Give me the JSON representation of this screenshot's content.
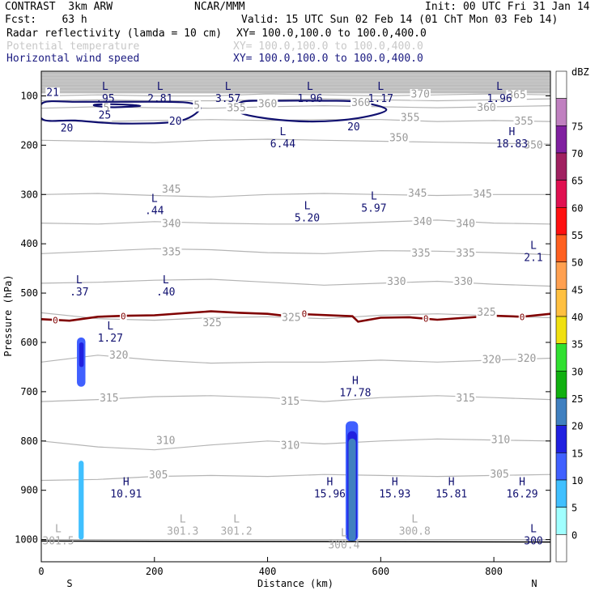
{
  "header": {
    "model": "CONTRAST  3km ARW",
    "center": "NCAR/MMM",
    "init": "Init: 00 UTC Fri 31 Jan 14",
    "fcst": "Fcst:    63 h",
    "valid": "Valid: 15 UTC Sun 02 Feb 14 (01 ChT Mon 03 Feb 14)",
    "fields": [
      {
        "name": "Radar reflectivity (lamda = 10 cm)",
        "xy": "XY= 100.0,100.0 to 100.0,400.0"
      },
      {
        "name": "Potential temperature",
        "xy": "XY= 100.0,100.0 to 100.0,400.0"
      },
      {
        "name": "Horizontal wind speed",
        "xy": "XY= 100.0,100.0 to 100.0,400.0"
      }
    ]
  },
  "chart_data": {
    "type": "cross-section",
    "xlabel": "Distance (km)",
    "ylabel": "Pressure (hPa)",
    "xlim": [
      0,
      900
    ],
    "ylim": [
      1045,
      50
    ],
    "x_ticks": [
      0,
      200,
      400,
      600,
      800
    ],
    "y_ticks": [
      100,
      200,
      300,
      400,
      500,
      600,
      700,
      800,
      900,
      1000
    ],
    "end_labels": {
      "left": "S",
      "right": "N"
    },
    "colorbar": {
      "unit": "dBZ",
      "levels": [
        "0",
        "5",
        "10",
        "15",
        "20",
        "25",
        "30",
        "35",
        "40",
        "45",
        "50",
        "55",
        "60",
        "65",
        "70",
        "75"
      ],
      "colors": [
        "#ffffff",
        "#a0ffff",
        "#40c0ff",
        "#4060ff",
        "#2020e0",
        "#4080c0",
        "#10b010",
        "#30e030",
        "#f0e010",
        "#ffc040",
        "#ffa050",
        "#ff6020",
        "#ff1010",
        "#e01050",
        "#a02060",
        "#8020a0",
        "#c080c0",
        "#ffffff"
      ]
    },
    "theta_contours": [
      {
        "value": 300,
        "p": [
          1000,
          1000,
          1000,
          1000,
          1000,
          1000,
          1000,
          1000,
          1000,
          1000
        ]
      },
      {
        "value": 305,
        "p": [
          880,
          878,
          872,
          870,
          872,
          868,
          870,
          872,
          870,
          868
        ]
      },
      {
        "value": 310,
        "p": [
          800,
          812,
          818,
          808,
          800,
          806,
          800,
          796,
          798,
          800
        ]
      },
      {
        "value": 315,
        "p": [
          720,
          716,
          710,
          708,
          712,
          720,
          712,
          708,
          712,
          716
        ]
      },
      {
        "value": 320,
        "p": [
          640,
          626,
          636,
          642,
          640,
          640,
          636,
          640,
          636,
          632
        ]
      },
      {
        "value": 325,
        "p": [
          540,
          552,
          555,
          550,
          548,
          552,
          545,
          542,
          546,
          550
        ]
      },
      {
        "value": 330,
        "p": [
          480,
          478,
          474,
          472,
          478,
          484,
          480,
          476,
          482,
          486
        ]
      },
      {
        "value": 335,
        "p": [
          420,
          415,
          410,
          412,
          418,
          420,
          414,
          415,
          418,
          422
        ]
      },
      {
        "value": 340,
        "p": [
          358,
          360,
          355,
          358,
          360,
          360,
          356,
          352,
          358,
          360
        ]
      },
      {
        "value": 345,
        "p": [
          300,
          298,
          302,
          305,
          300,
          298,
          300,
          302,
          300,
          300
        ]
      },
      {
        "value": 350,
        "p": [
          190,
          192,
          195,
          190,
          188,
          190,
          192,
          194,
          196,
          198
        ]
      },
      {
        "value": 355,
        "p": [
          150,
          152,
          150,
          148,
          150,
          148,
          148,
          152,
          150,
          152
        ]
      },
      {
        "value": 360,
        "p": [
          125,
          122,
          124,
          125,
          122,
          120,
          122,
          124,
          122,
          120
        ]
      },
      {
        "value": 365,
        "p": [
          110,
          108,
          110,
          110,
          108,
          106,
          108,
          110,
          108,
          106
        ]
      },
      {
        "value": 370,
        "p": [
          100,
          98,
          100,
          100,
          96,
          98,
          100,
          98,
          96,
          98
        ]
      }
    ],
    "theta_labels": [
      {
        "x": 115,
        "p": 123,
        "text": "5"
      },
      {
        "x": 275,
        "p": 118,
        "text": "5"
      },
      {
        "x": 345,
        "p": 123,
        "text": "355"
      },
      {
        "x": 400,
        "p": 115,
        "text": "360"
      },
      {
        "x": 565,
        "p": 112,
        "text": "360"
      },
      {
        "x": 670,
        "p": 95,
        "text": "370"
      },
      {
        "x": 787,
        "p": 122,
        "text": "360"
      },
      {
        "x": 840,
        "p": 97,
        "text": "365"
      },
      {
        "x": 853,
        "p": 150,
        "text": "355"
      },
      {
        "x": 652,
        "p": 143,
        "text": "355"
      },
      {
        "x": 632,
        "p": 184,
        "text": "350"
      },
      {
        "x": 870,
        "p": 199,
        "text": "350"
      },
      {
        "x": 230,
        "p": 288,
        "text": "345"
      },
      {
        "x": 665,
        "p": 296,
        "text": "345"
      },
      {
        "x": 780,
        "p": 298,
        "text": "345"
      },
      {
        "x": 230,
        "p": 358,
        "text": "340"
      },
      {
        "x": 674,
        "p": 354,
        "text": "340"
      },
      {
        "x": 750,
        "p": 358,
        "text": "340"
      },
      {
        "x": 230,
        "p": 415,
        "text": "335"
      },
      {
        "x": 671,
        "p": 418,
        "text": "335"
      },
      {
        "x": 750,
        "p": 418,
        "text": "335"
      },
      {
        "x": 628,
        "p": 475,
        "text": "330"
      },
      {
        "x": 746,
        "p": 475,
        "text": "330"
      },
      {
        "x": 302,
        "p": 559,
        "text": "325"
      },
      {
        "x": 442,
        "p": 548,
        "text": "325"
      },
      {
        "x": 787,
        "p": 538,
        "text": "325"
      },
      {
        "x": 137,
        "p": 625,
        "text": "320"
      },
      {
        "x": 796,
        "p": 634,
        "text": "320"
      },
      {
        "x": 858,
        "p": 631,
        "text": "320"
      },
      {
        "x": 120,
        "p": 712,
        "text": "315"
      },
      {
        "x": 440,
        "p": 718,
        "text": "315"
      },
      {
        "x": 750,
        "p": 712,
        "text": "315"
      },
      {
        "x": 220,
        "p": 798,
        "text": "310"
      },
      {
        "x": 440,
        "p": 808,
        "text": "310"
      },
      {
        "x": 812,
        "p": 796,
        "text": "310"
      },
      {
        "x": 207,
        "p": 868,
        "text": "305"
      },
      {
        "x": 810,
        "p": 866,
        "text": "305"
      }
    ],
    "wind_contours": [
      {
        "value": 20,
        "points": [
          [
            3,
            114
          ],
          [
            60,
            112
          ],
          [
            120,
            112
          ],
          [
            220,
            112
          ],
          [
            265,
            115
          ],
          [
            280,
            128
          ],
          [
            240,
            152
          ],
          [
            140,
            156
          ],
          [
            60,
            150
          ],
          [
            3,
            148
          ]
        ]
      },
      {
        "value": 25,
        "points": [
          [
            95,
            118
          ],
          [
            130,
            117
          ],
          [
            175,
            120
          ],
          [
            130,
            123
          ],
          [
            100,
            121
          ]
        ]
      },
      {
        "value": 20,
        "points": [
          [
            355,
            112
          ],
          [
            420,
            110
          ],
          [
            500,
            110
          ],
          [
            560,
            112
          ],
          [
            610,
            128
          ],
          [
            560,
            145
          ],
          [
            480,
            152
          ],
          [
            400,
            146
          ],
          [
            350,
            133
          ]
        ]
      }
    ],
    "wind_labels": [
      {
        "x": 3,
        "p": 92,
        "text": "21"
      },
      {
        "x": 95,
        "p": 138,
        "text": "25"
      },
      {
        "x": 220,
        "p": 150,
        "text": "20"
      },
      {
        "x": 28,
        "p": 164,
        "text": "20"
      },
      {
        "x": 535,
        "p": 162,
        "text": "20"
      }
    ],
    "freezing_level": {
      "label": "0",
      "x": [
        0,
        50,
        100,
        150,
        200,
        250,
        300,
        350,
        400,
        430,
        450,
        550,
        560,
        600,
        650,
        700,
        750,
        800,
        850,
        900
      ],
      "p": [
        553,
        556,
        548,
        546,
        545,
        541,
        537,
        540,
        542,
        546,
        542,
        547,
        558,
        550,
        549,
        554,
        550,
        546,
        548,
        542
      ]
    },
    "freezing_labels": [
      {
        "x": 25,
        "p": 555,
        "text": "0"
      },
      {
        "x": 145,
        "p": 547,
        "text": "0"
      },
      {
        "x": 465,
        "p": 542,
        "text": "0"
      },
      {
        "x": 680,
        "p": 552,
        "text": "0"
      },
      {
        "x": 850,
        "p": 548,
        "text": "0"
      }
    ],
    "reflectivity": [
      {
        "x0": 63,
        "x1": 78,
        "p_top": 590,
        "p_bot": 690,
        "dbz": 10
      },
      {
        "x0": 67,
        "x1": 75,
        "p_top": 600,
        "p_bot": 650,
        "dbz": 15
      },
      {
        "x0": 66,
        "x1": 75,
        "p_top": 840,
        "p_bot": 1000,
        "dbz": 5
      },
      {
        "x0": 538,
        "x1": 560,
        "p_top": 760,
        "p_bot": 1003,
        "dbz": 10
      },
      {
        "x0": 541,
        "x1": 558,
        "p_top": 780,
        "p_bot": 1003,
        "dbz": 15
      },
      {
        "x0": 543,
        "x1": 556,
        "p_top": 795,
        "p_bot": 1003,
        "dbz": 20
      }
    ],
    "extrema": [
      {
        "type": "L",
        "value": ".95",
        "x": 113,
        "p": 88
      },
      {
        "type": "L",
        "value": "2.81",
        "x": 210,
        "p": 88
      },
      {
        "type": "L",
        "value": "3.57",
        "x": 330,
        "p": 88
      },
      {
        "type": "L",
        "value": "1.96",
        "x": 475,
        "p": 88
      },
      {
        "type": "L",
        "value": "1.17",
        "x": 600,
        "p": 88
      },
      {
        "type": "L",
        "value": "1.96",
        "x": 810,
        "p": 88
      },
      {
        "type": "L",
        "value": "6.44",
        "x": 427,
        "p": 180
      },
      {
        "type": "H",
        "value": "18.83",
        "x": 832,
        "p": 180
      },
      {
        "type": "L",
        "value": ".44",
        "x": 200,
        "p": 315
      },
      {
        "type": "L",
        "value": "5.20",
        "x": 470,
        "p": 330
      },
      {
        "type": "L",
        "value": "5.97",
        "x": 588,
        "p": 310
      },
      {
        "type": "L",
        "value": "2.1",
        "x": 870,
        "p": 410
      },
      {
        "type": "L",
        "value": ".37",
        "x": 67,
        "p": 480
      },
      {
        "type": "L",
        "value": ".40",
        "x": 220,
        "p": 480
      },
      {
        "type": "L",
        "value": "1.27",
        "x": 122,
        "p": 574
      },
      {
        "type": "H",
        "value": "17.78",
        "x": 555,
        "p": 685
      },
      {
        "type": "H",
        "value": "10.91",
        "x": 150,
        "p": 890
      },
      {
        "type": "H",
        "value": "15.96",
        "x": 510,
        "p": 890
      },
      {
        "type": "H",
        "value": "15.93",
        "x": 625,
        "p": 890
      },
      {
        "type": "H",
        "value": "15.81",
        "x": 725,
        "p": 890
      },
      {
        "type": "H",
        "value": "16.29",
        "x": 850,
        "p": 890
      },
      {
        "type": "L",
        "value": "301.5",
        "x": 30,
        "p": 985
      },
      {
        "type": "L",
        "value": "301.3",
        "x": 250,
        "p": 965
      },
      {
        "type": "L",
        "value": "301.2",
        "x": 345,
        "p": 965
      },
      {
        "type": "L",
        "value": "300.8",
        "x": 660,
        "p": 965
      },
      {
        "type": "L",
        "value": "300.4",
        "x": 535,
        "p": 993
      },
      {
        "type": "L",
        "value": "300",
        "x": 870,
        "p": 985
      }
    ]
  }
}
